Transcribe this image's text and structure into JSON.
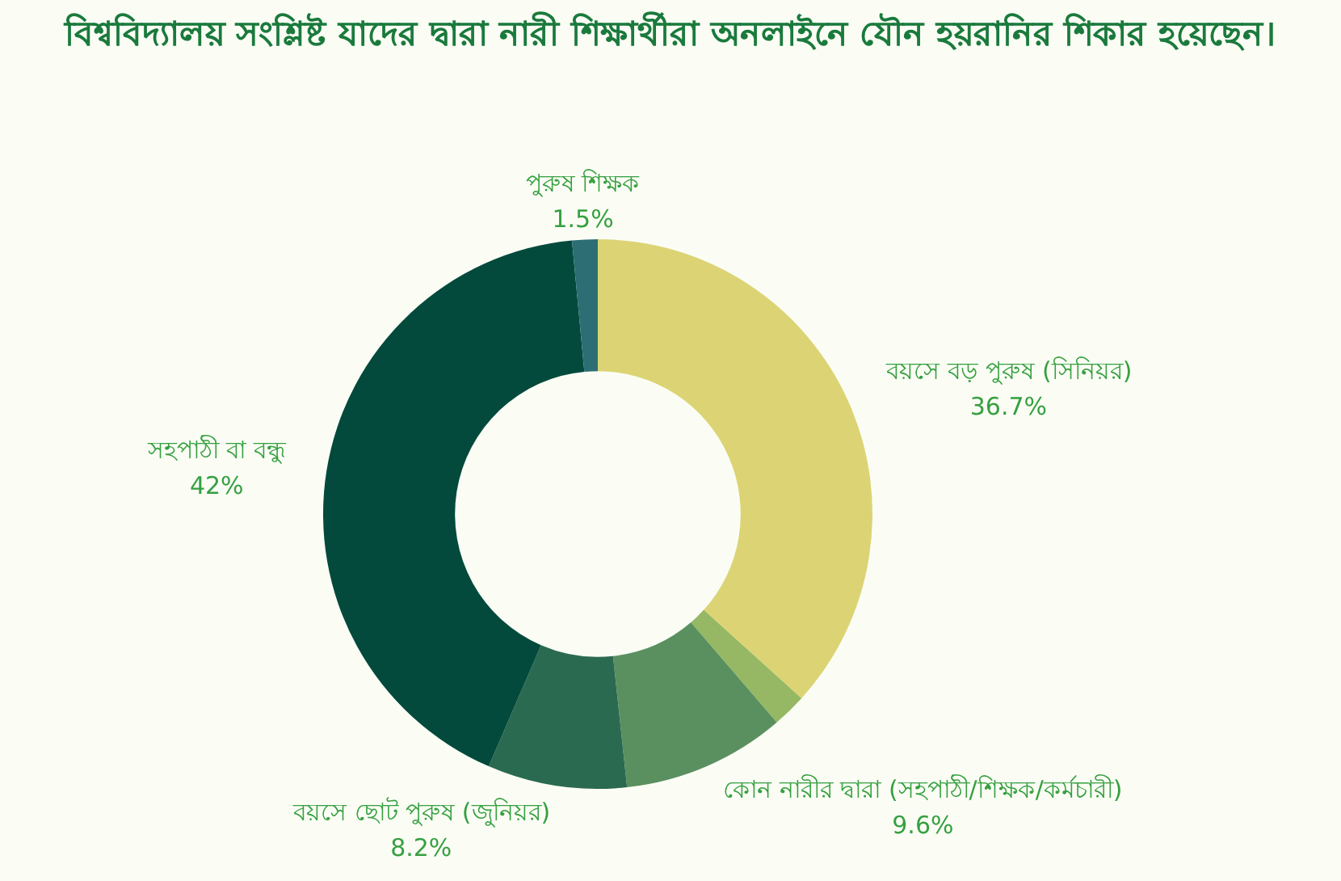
{
  "chart_data": {
    "type": "donut",
    "title": "বিশ্ববিদ্যালয় সংশ্লিষ্ট যাদের দ্বারা নারী শিক্ষার্থীরা অনলাইনে যৌন হয়রানির শিকার হয়েছেন।",
    "categories": [
      "বয়সে বড় পুরুষ (সিনিয়র)",
      null,
      "কোন নারীর দ্বারা (সহপাঠী/শিক্ষক/কর্মচারী)",
      "বয়সে ছোট পুরুষ (জুনিয়র)",
      "সহপাঠী বা বন্ধু",
      "পুরুষ শিক্ষক"
    ],
    "values": [
      36.7,
      2.0,
      9.6,
      8.2,
      42,
      1.5
    ],
    "value_labels": [
      "36.7%",
      null,
      "9.6%",
      "8.2%",
      "42%",
      "1.5%"
    ],
    "colors": [
      "#dcd474",
      "#96b864",
      "#5a9060",
      "#2a6a50",
      "#034a3c",
      "#2c6e74"
    ],
    "legend": false
  }
}
